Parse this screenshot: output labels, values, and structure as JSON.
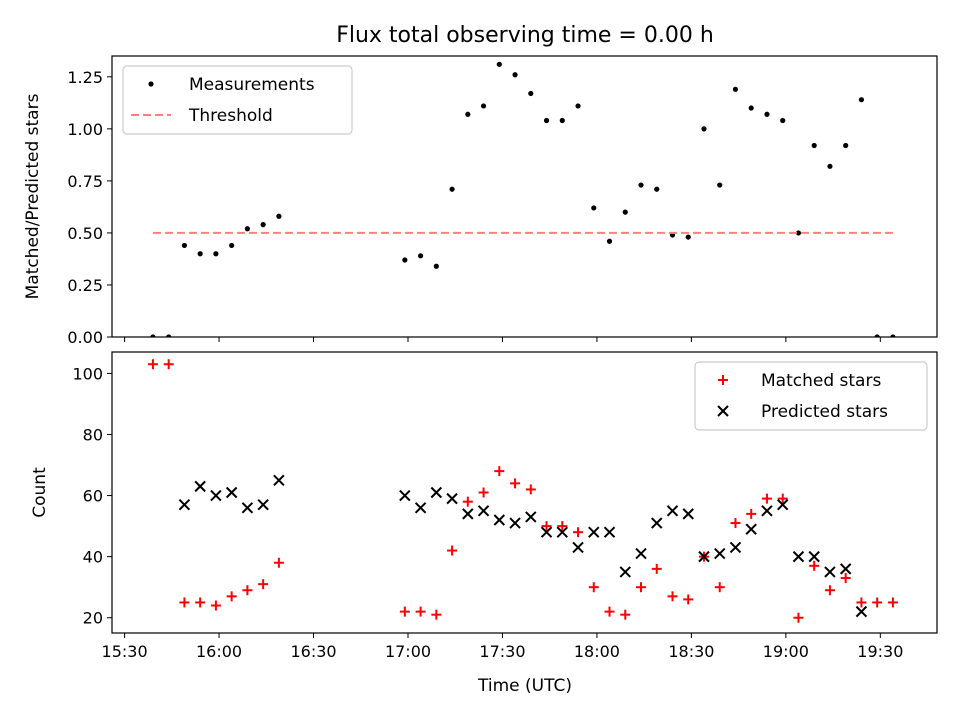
{
  "figure": {
    "title": "Flux total observing time = 0.00 h",
    "xlabel": "Time (UTC)"
  },
  "chart_data": [
    {
      "type": "scatter",
      "ylabel": "Matched/Predicted stars",
      "xlim": [
        "15:26",
        "19:48"
      ],
      "ylim": [
        0,
        1.35
      ],
      "x_ticks": [
        "15:30",
        "16:00",
        "16:30",
        "17:00",
        "17:30",
        "18:00",
        "18:30",
        "19:00",
        "19:30"
      ],
      "y_ticks": [
        0.0,
        0.25,
        0.5,
        0.75,
        1.0,
        1.25
      ],
      "y_tick_labels": [
        "0.00",
        "0.25",
        "0.50",
        "0.75",
        "1.00",
        "1.25"
      ],
      "legend_position": "top-left",
      "series": [
        {
          "name": "Measurements",
          "marker": "dot",
          "color": "#000000",
          "x": [
            "15:39",
            "15:44",
            "15:49",
            "15:54",
            "15:59",
            "16:04",
            "16:09",
            "16:14",
            "16:19",
            "16:59",
            "17:04",
            "17:09",
            "17:14",
            "17:19",
            "17:24",
            "17:29",
            "17:34",
            "17:39",
            "17:44",
            "17:49",
            "17:54",
            "17:59",
            "18:04",
            "18:09",
            "18:14",
            "18:19",
            "18:24",
            "18:29",
            "18:34",
            "18:39",
            "18:44",
            "18:49",
            "18:54",
            "18:59",
            "19:04",
            "19:09",
            "19:14",
            "19:19",
            "19:24",
            "19:29",
            "19:34"
          ],
          "y": [
            0.0,
            0.0,
            0.44,
            0.4,
            0.4,
            0.44,
            0.52,
            0.54,
            0.58,
            0.37,
            0.39,
            0.34,
            0.71,
            1.07,
            1.11,
            1.31,
            1.26,
            1.17,
            1.04,
            1.04,
            1.11,
            0.62,
            0.46,
            0.6,
            0.73,
            0.71,
            0.49,
            0.48,
            1.0,
            0.73,
            1.19,
            1.1,
            1.07,
            1.04,
            0.5,
            0.92,
            0.82,
            0.92,
            1.14,
            0.0,
            0.0
          ]
        },
        {
          "name": "Threshold",
          "style": "dashed",
          "color": "#ff7f7f",
          "x": [
            "15:39",
            "19:34"
          ],
          "y": [
            0.5,
            0.5
          ]
        }
      ]
    },
    {
      "type": "scatter",
      "ylabel": "Count",
      "xlim": [
        "15:26",
        "19:48"
      ],
      "ylim": [
        15,
        107
      ],
      "x_ticks": [
        "15:30",
        "16:00",
        "16:30",
        "17:00",
        "17:30",
        "18:00",
        "18:30",
        "19:00",
        "19:30"
      ],
      "y_ticks": [
        20,
        40,
        60,
        80,
        100
      ],
      "legend_position": "top-right",
      "series": [
        {
          "name": "Matched stars",
          "marker": "plus",
          "color": "#ff0000",
          "x": [
            "15:39",
            "15:44",
            "15:49",
            "15:54",
            "15:59",
            "16:04",
            "16:09",
            "16:14",
            "16:19",
            "16:59",
            "17:04",
            "17:09",
            "17:14",
            "17:19",
            "17:24",
            "17:29",
            "17:34",
            "17:39",
            "17:44",
            "17:49",
            "17:54",
            "17:59",
            "18:04",
            "18:09",
            "18:14",
            "18:19",
            "18:24",
            "18:29",
            "18:34",
            "18:39",
            "18:44",
            "18:49",
            "18:54",
            "18:59",
            "19:04",
            "19:09",
            "19:14",
            "19:19",
            "19:24",
            "19:29",
            "19:34"
          ],
          "y": [
            103,
            103,
            25,
            25,
            24,
            27,
            29,
            31,
            38,
            22,
            22,
            21,
            42,
            58,
            61,
            68,
            64,
            62,
            50,
            50,
            48,
            30,
            22,
            21,
            30,
            36,
            27,
            26,
            40,
            30,
            51,
            54,
            59,
            59,
            20,
            37,
            29,
            33,
            25,
            25,
            25
          ]
        },
        {
          "name": "Predicted stars",
          "marker": "x",
          "color": "#000000",
          "x": [
            "15:49",
            "15:54",
            "15:59",
            "16:04",
            "16:09",
            "16:14",
            "16:19",
            "16:59",
            "17:04",
            "17:09",
            "17:14",
            "17:19",
            "17:24",
            "17:29",
            "17:34",
            "17:39",
            "17:44",
            "17:49",
            "17:54",
            "17:59",
            "18:04",
            "18:09",
            "18:14",
            "18:19",
            "18:24",
            "18:29",
            "18:34",
            "18:39",
            "18:44",
            "18:49",
            "18:54",
            "18:59",
            "19:04",
            "19:09",
            "19:14",
            "19:19",
            "19:24"
          ],
          "y": [
            57,
            63,
            60,
            61,
            56,
            57,
            65,
            60,
            56,
            61,
            59,
            54,
            55,
            52,
            51,
            53,
            48,
            48,
            43,
            48,
            48,
            35,
            41,
            51,
            55,
            54,
            40,
            41,
            43,
            49,
            55,
            57,
            40,
            40,
            35,
            36,
            22
          ]
        }
      ]
    }
  ]
}
